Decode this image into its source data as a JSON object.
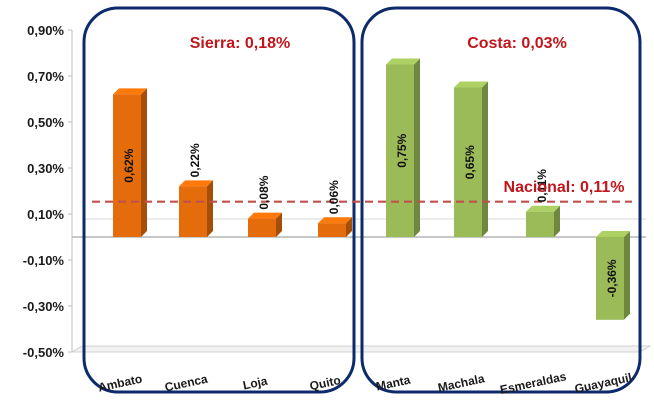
{
  "chart_data": {
    "type": "bar",
    "categories": [
      "Ambato",
      "Cuenca",
      "Loja",
      "Quito",
      "Manta",
      "Machala",
      "Esmeraldas",
      "Guayaquil"
    ],
    "values": [
      0.62,
      0.22,
      0.08,
      0.06,
      0.75,
      0.65,
      0.11,
      -0.36
    ],
    "value_labels": [
      "0,62%",
      "0,22%",
      "0,08%",
      "0,06%",
      "0,75%",
      "0,65%",
      "0,11%",
      "-0,36%"
    ],
    "groups": [
      {
        "key": "sierra",
        "label": "Sierra",
        "value_text": "0,18%",
        "color": "#E46C0A",
        "members": [
          "Ambato",
          "Cuenca",
          "Loja",
          "Quito"
        ]
      },
      {
        "key": "costa",
        "label": "Costa",
        "value_text": "0,03%",
        "color": "#9BBB59",
        "members": [
          "Manta",
          "Machala",
          "Esmeraldas",
          "Guayaquil"
        ]
      }
    ],
    "reference_line": {
      "label": "Nacional",
      "value": 0.11,
      "value_text": "0,11%",
      "color": "#C0504D",
      "style": "dashed"
    },
    "yticks": [
      "0,90%",
      "0,70%",
      "0,50%",
      "0,30%",
      "0,10%",
      "-0,10%",
      "-0,30%",
      "-0,50%"
    ],
    "ylim": [
      -0.5,
      0.9
    ],
    "title": "",
    "xlabel": "",
    "ylabel": "",
    "grid": false,
    "region_box_color": "#0D2A6B",
    "title_color": "#C0161C"
  }
}
